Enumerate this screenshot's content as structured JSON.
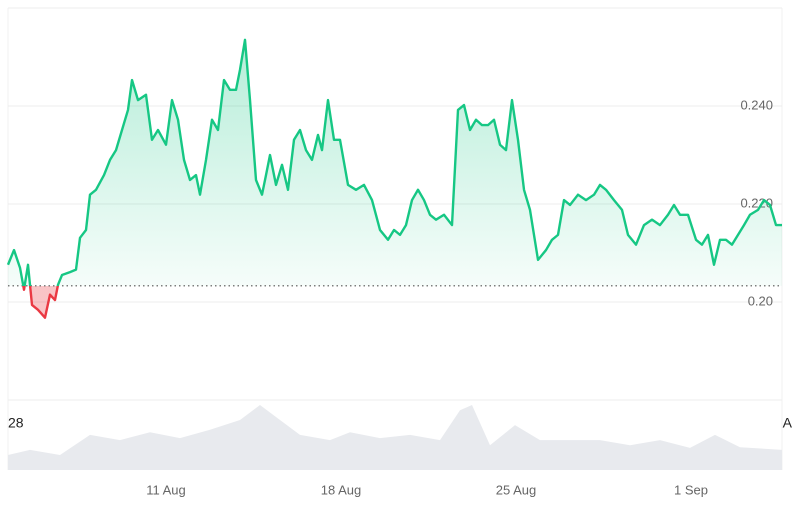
{
  "chart_data": {
    "type": "area",
    "x": [
      4.68,
      4.92,
      5.16,
      5.32,
      5.48,
      5.64,
      5.88,
      6.16,
      6.36,
      6.56,
      6.68,
      6.84,
      7.16,
      7.4,
      7.56,
      7.8,
      7.96,
      8.2,
      8.52,
      8.76,
      9.0,
      9.24,
      9.48,
      9.64,
      9.88,
      10.2,
      10.44,
      10.68,
      11.0,
      11.24,
      11.48,
      11.72,
      11.96,
      12.2,
      12.36,
      12.6,
      12.84,
      13.08,
      13.32,
      13.56,
      13.8,
      13.96,
      14.16,
      14.36,
      14.6,
      14.84,
      15.0,
      15.16,
      15.4,
      15.64,
      15.88,
      16.12,
      16.36,
      16.6,
      16.84,
      17.08,
      17.24,
      17.48,
      17.72,
      17.96,
      18.28,
      18.6,
      18.92,
      19.24,
      19.56,
      19.88,
      20.12,
      20.36,
      20.6,
      20.84,
      21.08,
      21.32,
      21.56,
      21.8,
      22.12,
      22.44,
      22.68,
      22.92,
      23.16,
      23.4,
      23.64,
      23.88,
      24.12,
      24.36,
      24.6,
      24.84,
      25.08,
      25.32,
      25.56,
      25.88,
      26.2,
      26.44,
      26.68,
      26.92,
      27.16,
      27.48,
      27.8,
      28.12,
      28.36,
      28.6,
      28.92,
      29.24,
      29.48,
      29.8,
      30.12,
      30.44,
      30.76,
      31.08,
      31.32,
      31.56,
      31.88,
      32.2,
      32.44,
      32.68,
      32.92,
      33.16,
      33.4,
      33.64,
      33.88,
      34.12,
      34.36,
      34.68,
      34.92,
      35.16,
      35.4,
      35.64
    ],
    "values": [
      0.2076,
      0.2106,
      0.207,
      0.2025,
      0.2076,
      0.1994,
      0.1984,
      0.1968,
      0.2015,
      0.2004,
      0.2035,
      0.2055,
      0.2061,
      0.2066,
      0.2131,
      0.2147,
      0.2219,
      0.2229,
      0.2259,
      0.229,
      0.231,
      0.2351,
      0.2392,
      0.2453,
      0.2412,
      0.2423,
      0.2331,
      0.2351,
      0.2321,
      0.2412,
      0.2372,
      0.229,
      0.2249,
      0.2259,
      0.2219,
      0.229,
      0.2372,
      0.2351,
      0.2453,
      0.2433,
      0.2433,
      0.2474,
      0.2535,
      0.2412,
      0.2249,
      0.2219,
      0.2259,
      0.23,
      0.2239,
      0.228,
      0.2229,
      0.2331,
      0.2351,
      0.231,
      0.229,
      0.2341,
      0.231,
      0.2412,
      0.2331,
      0.2331,
      0.2239,
      0.2229,
      0.2239,
      0.2208,
      0.2147,
      0.2127,
      0.2147,
      0.2137,
      0.2157,
      0.2208,
      0.2229,
      0.2208,
      0.2178,
      0.2168,
      0.2178,
      0.2157,
      0.2392,
      0.2402,
      0.2351,
      0.2372,
      0.2361,
      0.2361,
      0.2372,
      0.2321,
      0.231,
      0.2412,
      0.2331,
      0.2229,
      0.2188,
      0.2086,
      0.2106,
      0.2127,
      0.2137,
      0.2208,
      0.2198,
      0.2219,
      0.2208,
      0.2219,
      0.2239,
      0.2229,
      0.2208,
      0.2188,
      0.2137,
      0.2117,
      0.2157,
      0.2168,
      0.2157,
      0.2178,
      0.2198,
      0.2178,
      0.2178,
      0.2127,
      0.2117,
      0.2137,
      0.2076,
      0.2127,
      0.2127,
      0.2117,
      0.2137,
      0.2157,
      0.2178,
      0.2188,
      0.2208,
      0.2198,
      0.2157,
      0.2157
    ],
    "color": "#16c784",
    "below_color": "#ea3943",
    "baseline": 0.2033,
    "xlim": [
      4.68,
      35.64
    ],
    "ylim": [
      0.18,
      0.26
    ],
    "yticks": [
      {
        "value": 0.24,
        "label": "0.240"
      },
      {
        "value": 0.22,
        "label": "0.220"
      },
      {
        "value": 0.2,
        "label": "0.20"
      }
    ],
    "xticks": [
      {
        "value": 11,
        "label": "11 Aug"
      },
      {
        "value": 18,
        "label": "18 Aug"
      },
      {
        "value": 25,
        "label": "25 Aug"
      },
      {
        "value": 32,
        "label": "1 Sep"
      }
    ],
    "grid": true,
    "range_labels": [
      "28",
      "A"
    ],
    "volume": {
      "x": [
        4.68,
        5.56,
        6.76,
        7.96,
        9.16,
        10.36,
        11.56,
        12.76,
        13.96,
        14.76,
        15.56,
        16.36,
        17.56,
        18.36,
        19.56,
        20.76,
        21.96,
        22.76,
        23.24,
        23.96,
        24.96,
        25.96,
        27.16,
        28.36,
        29.56,
        30.76,
        31.96,
        32.96,
        33.96,
        35.64
      ],
      "values": [
        23,
        31,
        23,
        54,
        46,
        58,
        49,
        62,
        77,
        100,
        77,
        54,
        46,
        58,
        49,
        54,
        46,
        92,
        100,
        38,
        69,
        46,
        46,
        46,
        38,
        46,
        34,
        54,
        35,
        31
      ],
      "ylim": [
        0,
        100
      ],
      "color": "#e8eaee"
    }
  }
}
